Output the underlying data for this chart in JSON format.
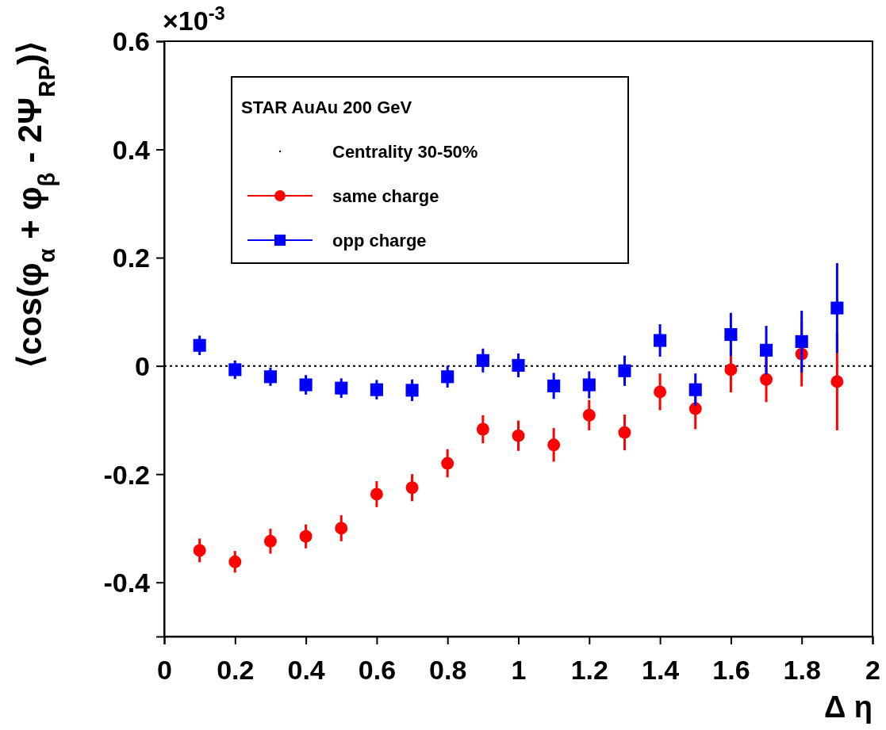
{
  "chart_data": {
    "type": "scatter",
    "xlabel": "Δ η",
    "ylabel": "⟨cos(φ$_{α}$ + φ$_{β}$ - 2Ψ$_{RP}$)⟩",
    "legend_title": "STAR   AuAu 200 GeV",
    "annotations": [
      "×10$^{-3}$",
      "Centrality 30-50%"
    ],
    "legend": "top left",
    "x": [
      0.1,
      0.2,
      0.3,
      0.4,
      0.5,
      0.6,
      0.7,
      0.8,
      0.9,
      1.0,
      1.1,
      1.2,
      1.3,
      1.4,
      1.5,
      1.6,
      1.7,
      1.8,
      1.9
    ],
    "series": [
      {
        "name": "same charge",
        "color": "#ff0000",
        "marker": "circle",
        "values": [
          -0.341,
          -0.362,
          -0.324,
          -0.315,
          -0.3,
          -0.237,
          -0.225,
          -0.18,
          -0.117,
          -0.129,
          -0.146,
          -0.091,
          -0.123,
          -0.048,
          -0.079,
          -0.007,
          -0.025,
          0.022,
          -0.029
        ],
        "errors": [
          0.022,
          0.02,
          0.023,
          0.022,
          0.024,
          0.024,
          0.025,
          0.026,
          0.026,
          0.028,
          0.031,
          0.028,
          0.033,
          0.034,
          0.038,
          0.042,
          0.042,
          0.06,
          0.09
        ]
      },
      {
        "name": "opp charge",
        "color": "#0000ff",
        "marker": "square",
        "values": [
          0.038,
          -0.007,
          -0.02,
          -0.035,
          -0.041,
          -0.044,
          -0.045,
          -0.02,
          0.01,
          0.001,
          -0.037,
          -0.035,
          -0.009,
          0.047,
          -0.044,
          0.058,
          0.029,
          0.045,
          0.107
        ],
        "errors": [
          0.018,
          0.017,
          0.017,
          0.018,
          0.018,
          0.018,
          0.02,
          0.02,
          0.022,
          0.022,
          0.024,
          0.025,
          0.028,
          0.03,
          0.03,
          0.04,
          0.045,
          0.057,
          0.083
        ]
      }
    ],
    "xlim": [
      0,
      2
    ],
    "xticks": [
      0,
      0.2,
      0.4,
      0.6,
      0.8,
      1,
      1.2,
      1.4,
      1.6,
      1.8,
      2
    ],
    "ylim": [
      -0.5,
      0.6
    ],
    "yticks": [
      -0.4,
      -0.2,
      0,
      0.2,
      0.4,
      0.6
    ],
    "ref_lines": [
      {
        "axis": "y",
        "value": 0,
        "line_style": "dotted",
        "color": "#000000"
      }
    ],
    "grid": false
  }
}
